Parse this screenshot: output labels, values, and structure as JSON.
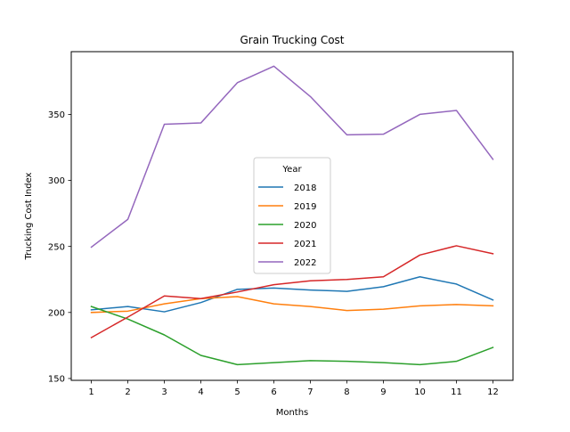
{
  "chart_data": {
    "type": "line",
    "title": "Grain Trucking Cost",
    "xlabel": "Months",
    "ylabel": "Trucking Cost Index",
    "x": [
      1,
      2,
      3,
      4,
      5,
      6,
      7,
      8,
      9,
      10,
      11,
      12
    ],
    "xlim": [
      0.45,
      12.55
    ],
    "ylim": [
      148.6,
      397.5
    ],
    "yticks": [
      150,
      200,
      250,
      300,
      350
    ],
    "grid": false,
    "legend": {
      "title": "Year",
      "placement": "center"
    },
    "series": [
      {
        "name": "2018",
        "color": "#1f77b4",
        "values": [
          202,
          204.5,
          200.5,
          207.5,
          217.5,
          218.5,
          217,
          216,
          219.5,
          227,
          221.5,
          209.5
        ]
      },
      {
        "name": "2019",
        "color": "#ff7f0e",
        "values": [
          200,
          201,
          206.5,
          210.5,
          212,
          206.5,
          204.5,
          201.5,
          202.5,
          205,
          206,
          205
        ]
      },
      {
        "name": "2020",
        "color": "#2ca02c",
        "values": [
          204.5,
          195,
          183,
          167.5,
          160.5,
          162,
          163.5,
          163,
          162,
          160.5,
          163,
          173.5
        ]
      },
      {
        "name": "2021",
        "color": "#d62728",
        "values": [
          181,
          196.5,
          212.5,
          210.5,
          215.5,
          221,
          224,
          225,
          227,
          243.5,
          250.5,
          244.5
        ]
      },
      {
        "name": "2022",
        "color": "#9467bd",
        "values": [
          249.5,
          270.5,
          342.5,
          343.5,
          374,
          386.5,
          363.5,
          334.5,
          335,
          350,
          353,
          316
        ]
      }
    ]
  }
}
